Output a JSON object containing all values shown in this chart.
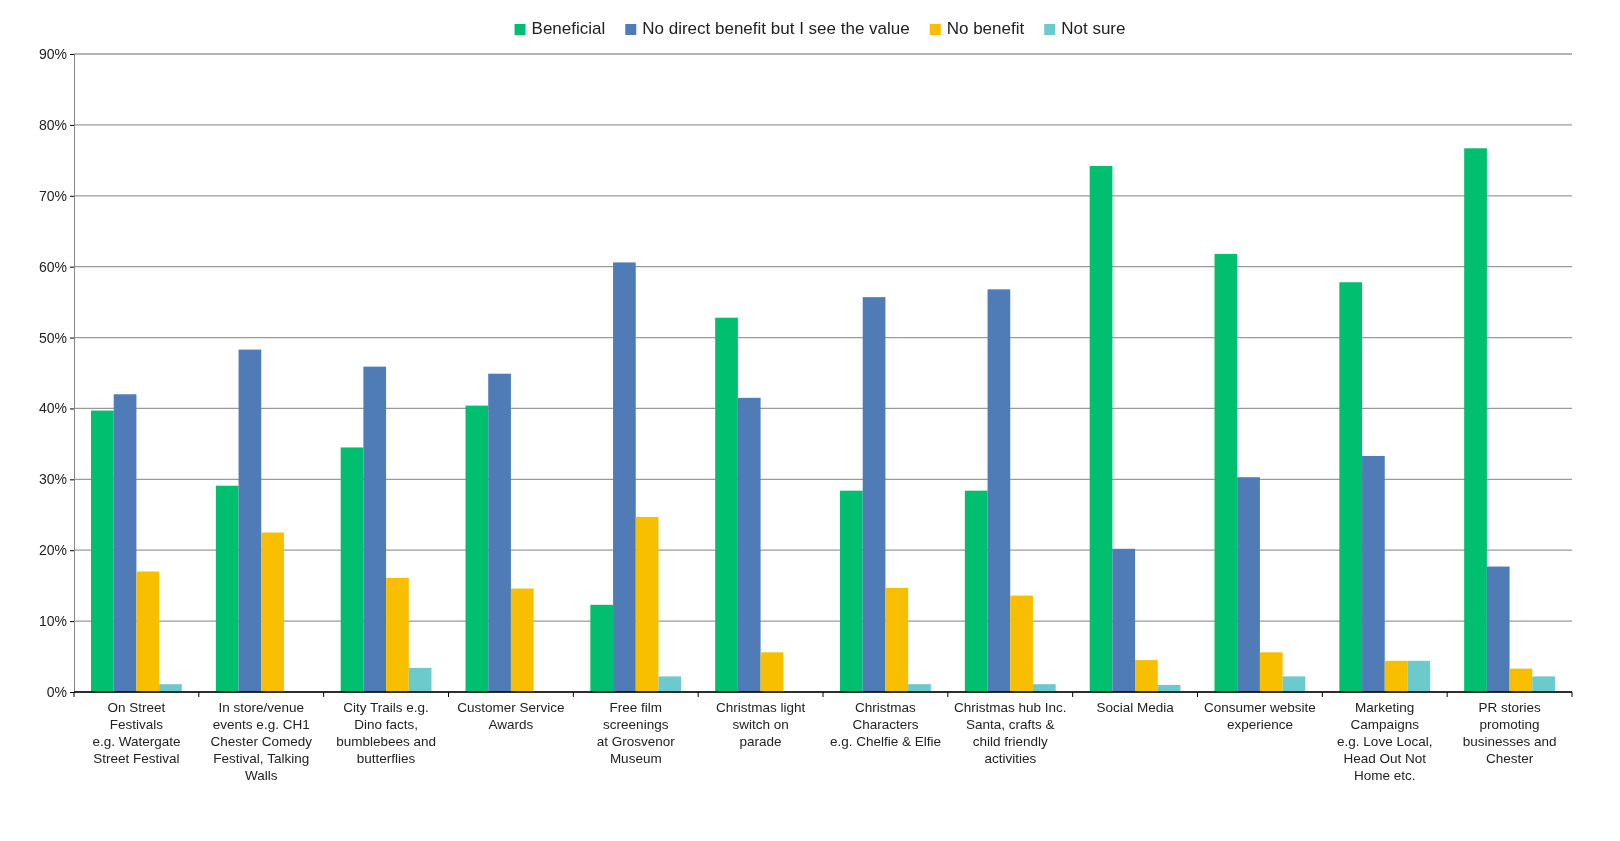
{
  "chart_data": {
    "type": "bar",
    "categories": [
      "On Street\nFestivals\ne.g. Watergate\nStreet Festival",
      "In store/venue\nevents e.g. CH1\nChester Comedy\nFestival, Talking\nWalls",
      "City Trails e.g.\nDino facts,\nbumblebees and\nbutterflies",
      "Customer Service\nAwards",
      "Free film\nscreenings\nat Grosvenor\nMuseum",
      "Christmas light\nswitch on\nparade",
      "Christmas\nCharacters\ne.g. Chelfie & Elfie",
      "Christmas hub Inc.\nSanta, crafts &\nchild friendly\nactivities",
      "Social Media",
      "Consumer website\nexperience",
      "Marketing\nCampaigns\ne.g. Love Local,\nHead Out Not\nHome etc.",
      "PR stories\npromoting\nbusinesses and\nChester"
    ],
    "series": [
      {
        "name": "Beneficial",
        "color": "#00bf6f",
        "values": [
          39.7,
          29.1,
          34.5,
          40.4,
          12.3,
          52.8,
          28.4,
          28.4,
          74.2,
          61.8,
          57.8,
          76.7
        ]
      },
      {
        "name": "No direct benefit but I see the value",
        "color": "#4f7cb7",
        "values": [
          42.0,
          48.3,
          45.9,
          44.9,
          60.6,
          41.5,
          55.7,
          56.8,
          20.2,
          30.3,
          33.3,
          17.7
        ]
      },
      {
        "name": "No benefit",
        "color": "#f8bf00",
        "values": [
          17.0,
          22.5,
          16.1,
          14.6,
          24.7,
          5.6,
          14.7,
          13.6,
          4.5,
          5.6,
          4.4,
          3.3
        ]
      },
      {
        "name": "Not sure",
        "color": "#6cc9cc",
        "values": [
          1.1,
          null,
          3.4,
          null,
          2.2,
          null,
          1.1,
          1.1,
          1.0,
          2.2,
          4.4,
          2.2
        ]
      }
    ],
    "ylim": [
      0,
      90
    ],
    "yticks": [
      {
        "value": 0,
        "label": "0%"
      },
      {
        "value": 10,
        "label": "10%"
      },
      {
        "value": 20,
        "label": "20%"
      },
      {
        "value": 30,
        "label": "30%"
      },
      {
        "value": 40,
        "label": "40%"
      },
      {
        "value": 50,
        "label": "50%"
      },
      {
        "value": 60,
        "label": "60%"
      },
      {
        "value": 70,
        "label": "70%"
      },
      {
        "value": 80,
        "label": "80%"
      },
      {
        "value": 90,
        "label": "90%"
      }
    ],
    "grid": "y",
    "legend": "top"
  }
}
